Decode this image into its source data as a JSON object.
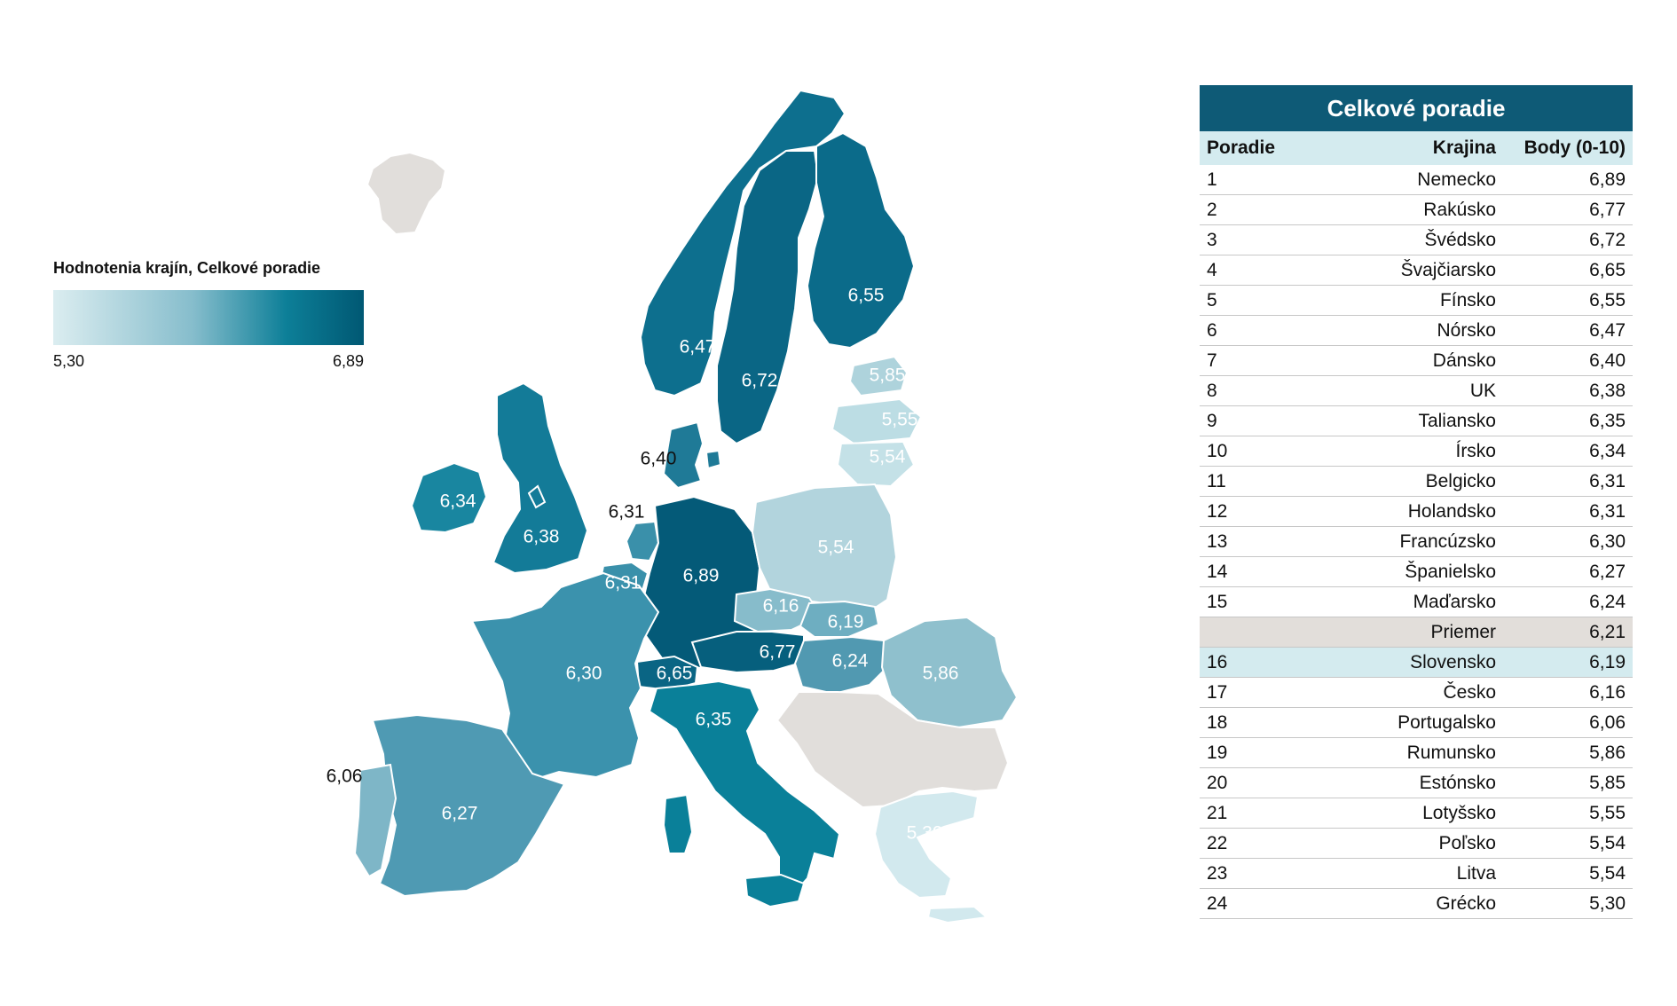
{
  "legend": {
    "title": "Hodnotenia krajín, Celkové poradie",
    "min_label": "5,30",
    "max_label": "6,89",
    "colors": [
      "#dbedf0",
      "#86bdcc",
      "#0d7f98",
      "#005873"
    ]
  },
  "map_regions": [
    {
      "id": "iceland",
      "value": null,
      "color": "#e1dedb"
    },
    {
      "id": "norway",
      "value": "6,47",
      "color": "#0d6f8e"
    },
    {
      "id": "sweden",
      "value": "6,72",
      "color": "#0a6685"
    },
    {
      "id": "finland",
      "value": "6,55",
      "color": "#0b6b8a"
    },
    {
      "id": "estonia",
      "value": "5,85",
      "color": "#aed3dc"
    },
    {
      "id": "latvia",
      "value": "5,55",
      "color": "#bcdde4"
    },
    {
      "id": "lithuania",
      "value": "5,54",
      "color": "#c4e1e7"
    },
    {
      "id": "denmark",
      "value": "6,40",
      "color": "#1f7a97"
    },
    {
      "id": "ireland",
      "value": "6,34",
      "color": "#1986a0"
    },
    {
      "id": "uk",
      "value": "6,38",
      "color": "#137b98"
    },
    {
      "id": "netherlands",
      "value": "6,31",
      "color": "#3a90aa"
    },
    {
      "id": "belgium",
      "value": "6,31",
      "color": "#3a90aa"
    },
    {
      "id": "germany",
      "value": "6,89",
      "color": "#045a78"
    },
    {
      "id": "poland",
      "value": "5,54",
      "color": "#b2d4dd"
    },
    {
      "id": "czechia",
      "value": "6,16",
      "color": "#87bccb"
    },
    {
      "id": "slovakia",
      "value": "6,19",
      "color": "#6eaec1"
    },
    {
      "id": "austria",
      "value": "6,77",
      "color": "#065f7d"
    },
    {
      "id": "switzerland",
      "value": "6,65",
      "color": "#0a6584"
    },
    {
      "id": "hungary",
      "value": "6,24",
      "color": "#5199b1"
    },
    {
      "id": "romania",
      "value": "5,86",
      "color": "#8fc0cd"
    },
    {
      "id": "france",
      "value": "6,30",
      "color": "#3b92ad"
    },
    {
      "id": "spain",
      "value": "6,27",
      "color": "#4f9ab3"
    },
    {
      "id": "portugal",
      "value": "6,06",
      "color": "#7eb6c7"
    },
    {
      "id": "italy",
      "value": "6,35",
      "color": "#0a8099"
    },
    {
      "id": "balkans",
      "value": null,
      "color": "#e1dedb"
    },
    {
      "id": "greece",
      "value": "5,30",
      "color": "#d2e9ee"
    }
  ],
  "table": {
    "title": "Celkové poradie",
    "headers": {
      "rank": "Poradie",
      "country": "Krajina",
      "score": "Body (0-10)"
    },
    "rows": [
      {
        "rank": "1",
        "country": "Nemecko",
        "score": "6,89"
      },
      {
        "rank": "2",
        "country": "Rakúsko",
        "score": "6,77"
      },
      {
        "rank": "3",
        "country": "Švédsko",
        "score": "6,72"
      },
      {
        "rank": "4",
        "country": "Švajčiarsko",
        "score": "6,65"
      },
      {
        "rank": "5",
        "country": "Fínsko",
        "score": "6,55"
      },
      {
        "rank": "6",
        "country": "Nórsko",
        "score": "6,47"
      },
      {
        "rank": "7",
        "country": "Dánsko",
        "score": "6,40"
      },
      {
        "rank": "8",
        "country": "UK",
        "score": "6,38"
      },
      {
        "rank": "9",
        "country": "Taliansko",
        "score": "6,35"
      },
      {
        "rank": "10",
        "country": "Írsko",
        "score": "6,34"
      },
      {
        "rank": "11",
        "country": "Belgicko",
        "score": "6,31"
      },
      {
        "rank": "12",
        "country": "Holandsko",
        "score": "6,31"
      },
      {
        "rank": "13",
        "country": "Francúzsko",
        "score": "6,30"
      },
      {
        "rank": "14",
        "country": "Španielsko",
        "score": "6,27"
      },
      {
        "rank": "15",
        "country": "Maďarsko",
        "score": "6,24"
      },
      {
        "rank": "",
        "country": "Priemer",
        "score": "6,21",
        "kind": "avg"
      },
      {
        "rank": "16",
        "country": "Slovensko",
        "score": "6,19",
        "kind": "hl"
      },
      {
        "rank": "17",
        "country": "Česko",
        "score": "6,16"
      },
      {
        "rank": "18",
        "country": "Portugalsko",
        "score": "6,06"
      },
      {
        "rank": "19",
        "country": "Rumunsko",
        "score": "5,86"
      },
      {
        "rank": "20",
        "country": "Estónsko",
        "score": "5,85"
      },
      {
        "rank": "21",
        "country": "Lotyšsko",
        "score": "5,55"
      },
      {
        "rank": "22",
        "country": "Poľsko",
        "score": "5,54"
      },
      {
        "rank": "23",
        "country": "Litva",
        "score": "5,54"
      },
      {
        "rank": "24",
        "country": "Grécko",
        "score": "5,30"
      }
    ]
  }
}
